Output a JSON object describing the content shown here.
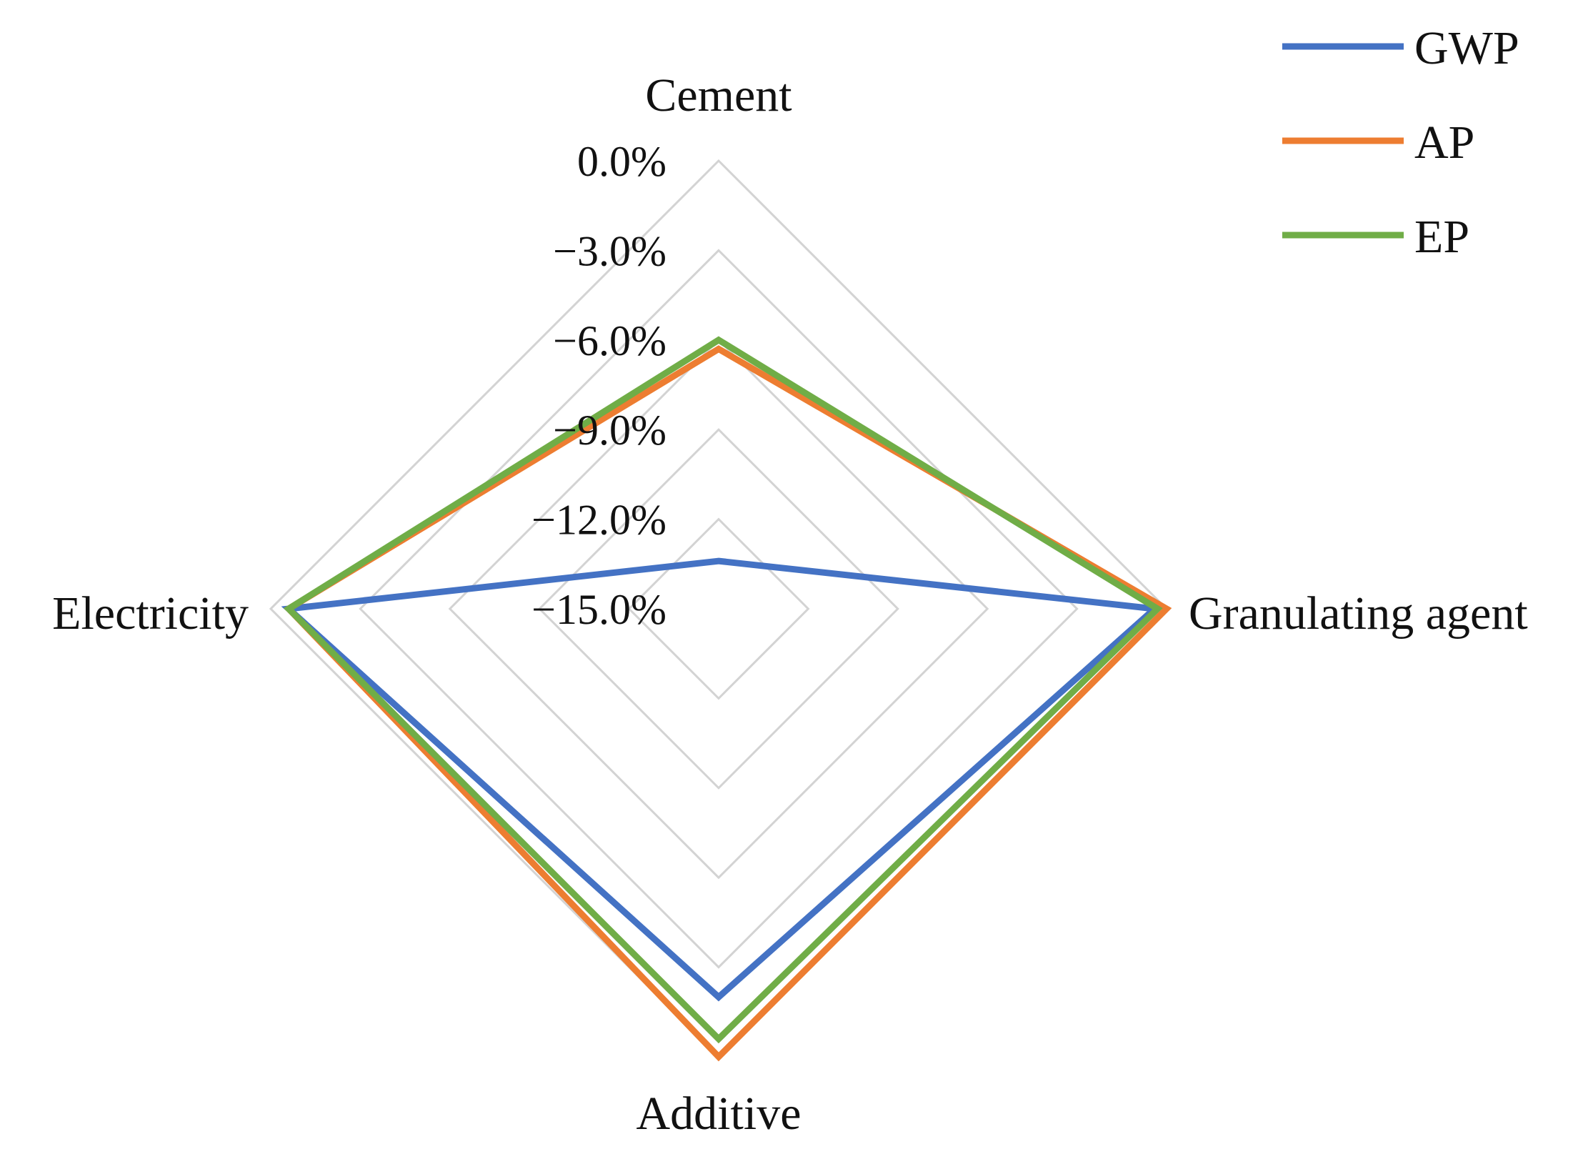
{
  "chart_data": {
    "type": "radar",
    "axes": [
      "Cement",
      "Granulating agent",
      "Additive",
      "Electricity"
    ],
    "r_ticks": [
      "0.0%",
      "−3.0%",
      "−6.0%",
      "−9.0%",
      "−12.0%",
      "−15.0%"
    ],
    "r_range": [
      -15.0,
      0.0
    ],
    "r_unit": "%",
    "grid": true,
    "legend_position": "top-right",
    "series": [
      {
        "name": "GWP",
        "color": "#4472c4",
        "values": [
          -13.4,
          -0.4,
          -2.0,
          -0.6
        ]
      },
      {
        "name": "AP",
        "color": "#ed7d31",
        "values": [
          -6.3,
          0.0,
          0.0,
          -0.6
        ]
      },
      {
        "name": "EP",
        "color": "#70ad47",
        "values": [
          -6.0,
          -0.3,
          -0.6,
          -0.6
        ]
      }
    ]
  }
}
